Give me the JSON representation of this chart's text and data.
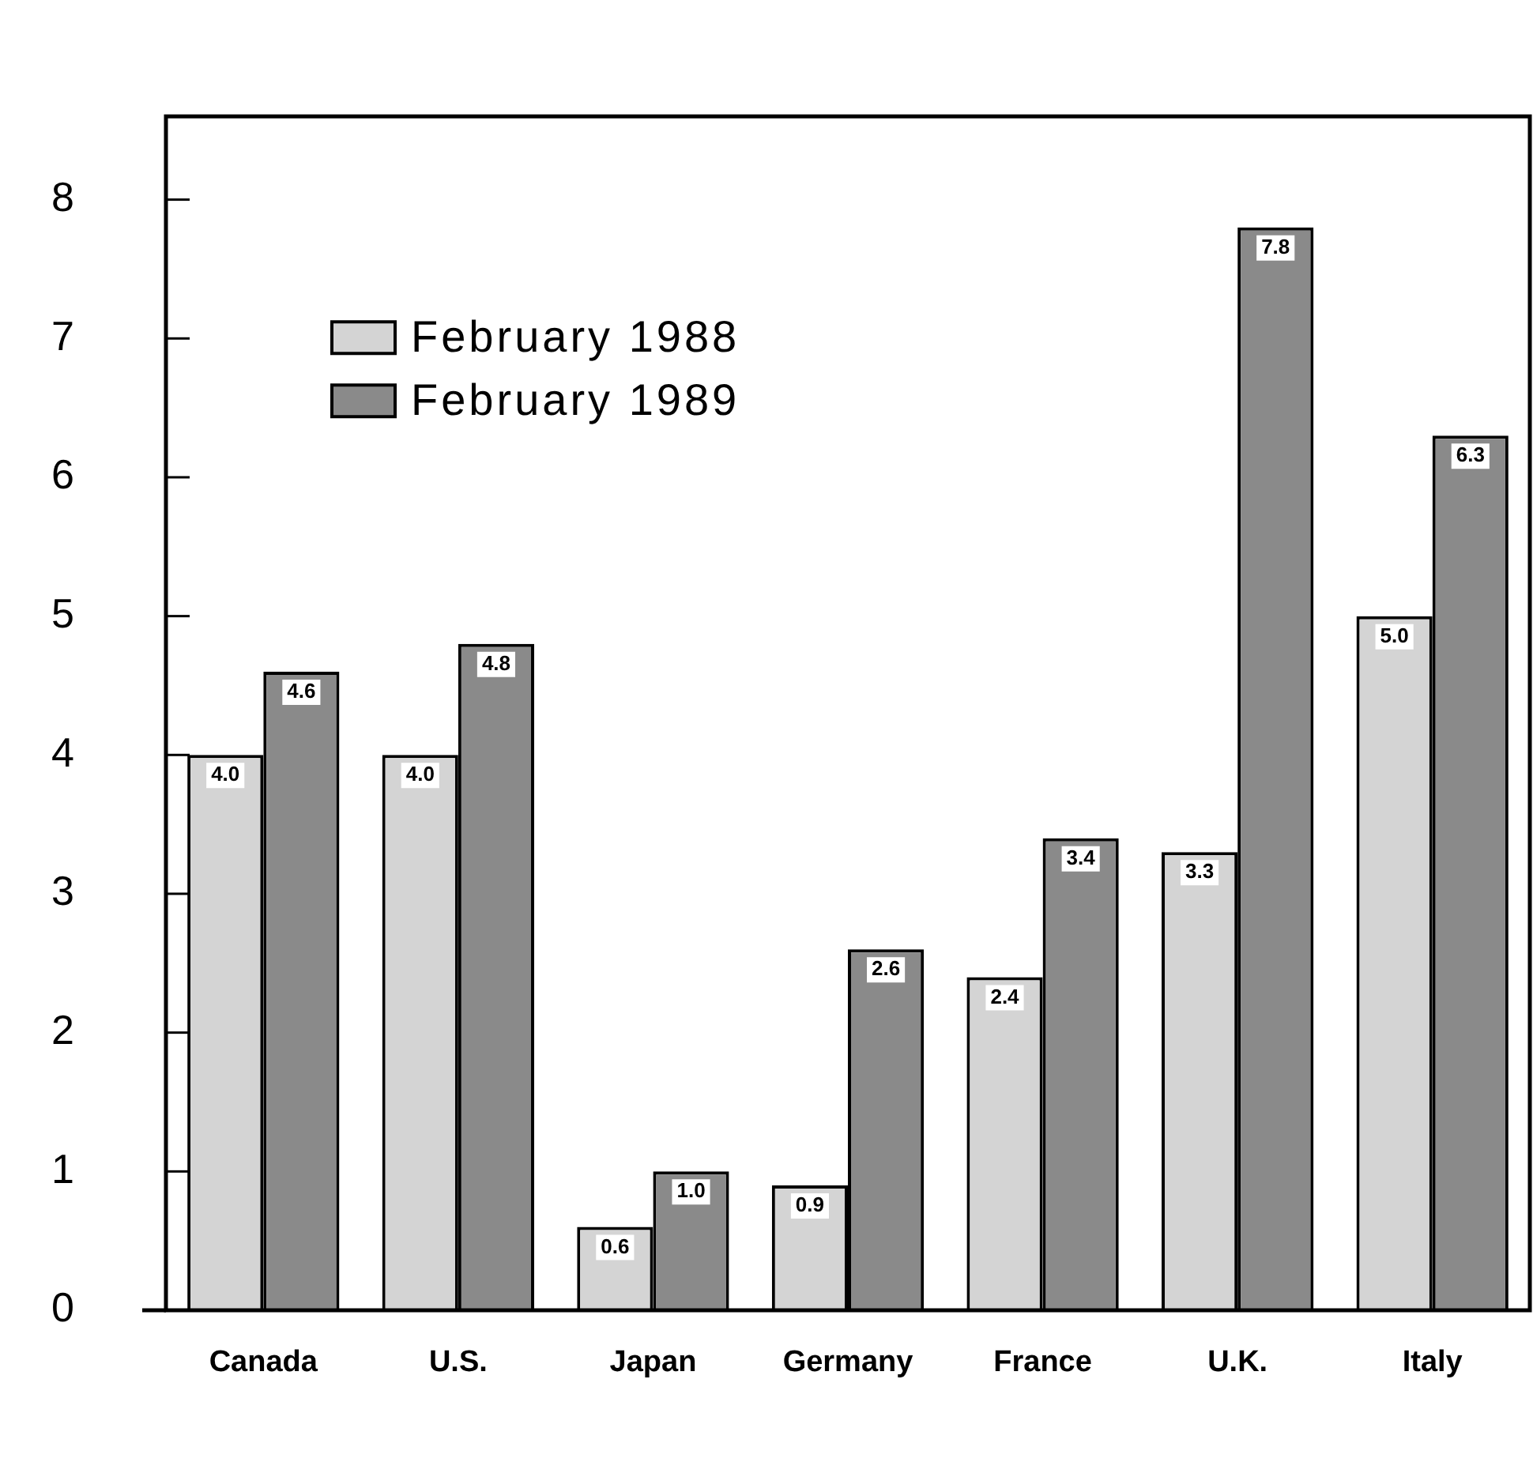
{
  "chart_data": {
    "type": "bar",
    "categories": [
      "Canada",
      "U.S.",
      "Japan",
      "Germany",
      "France",
      "U.K.",
      "Italy"
    ],
    "series": [
      {
        "name": "February 1988",
        "color": "#d4d4d4",
        "values": [
          4.0,
          4.0,
          0.6,
          0.9,
          2.4,
          3.3,
          5.0
        ],
        "value_labels": [
          "4.0",
          "4.0",
          "0.6",
          "0.9",
          "2.4",
          "3.3",
          "5.0"
        ]
      },
      {
        "name": "February 1989",
        "color": "#8a8a8a",
        "values": [
          4.6,
          4.8,
          1.0,
          2.6,
          3.4,
          7.8,
          6.3
        ],
        "value_labels": [
          "4.6",
          "4.8",
          "1.0",
          "2.6",
          "3.4",
          "7.8",
          "6.3"
        ]
      }
    ],
    "ylim": [
      0,
      8.6
    ],
    "yticks": [
      0,
      1,
      2,
      3,
      4,
      5,
      6,
      7,
      8
    ],
    "legend": "top left"
  }
}
